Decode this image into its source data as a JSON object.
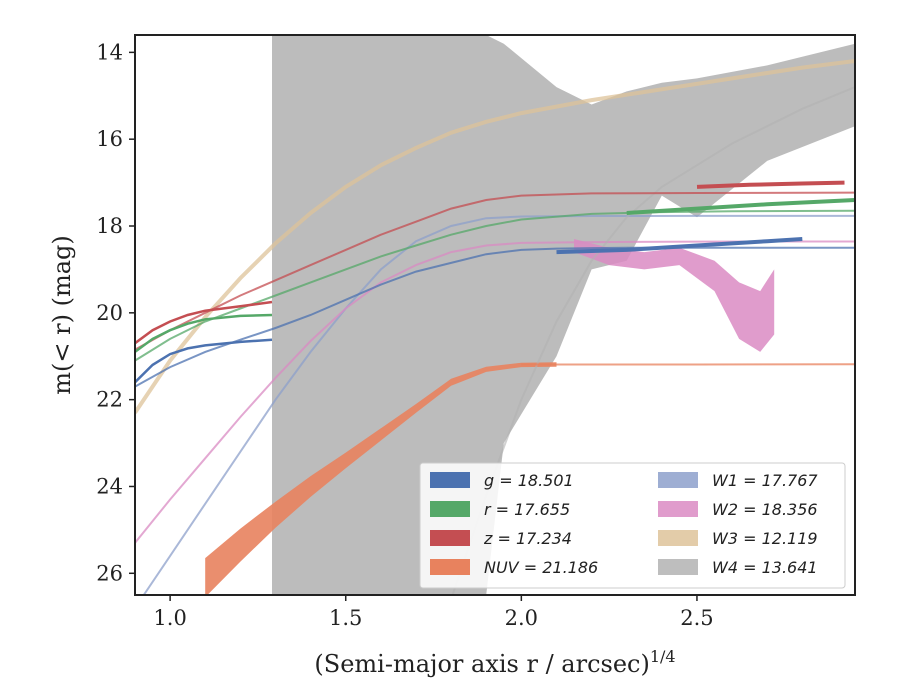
{
  "chart_data": {
    "type": "line",
    "xlabel": "(Semi-major axis r / arcsec)",
    "xlabel_sup": "1/4",
    "ylabel": "m(< r) (mag)",
    "xlim": [
      0.9,
      2.95
    ],
    "ylim": [
      26.5,
      13.6
    ],
    "y_inverted": true,
    "grid": false,
    "legend_position": "lower-right",
    "x_ticks": [
      "1.0",
      "1.5",
      "2.0",
      "2.5"
    ],
    "x_tick_values": [
      1.0,
      1.5,
      2.0,
      2.5
    ],
    "y_ticks": [
      "14",
      "16",
      "18",
      "20",
      "22",
      "24",
      "26"
    ],
    "y_tick_values": [
      14,
      16,
      18,
      20,
      22,
      24,
      26
    ],
    "series": [
      {
        "name": "g = 18.501",
        "symbol": "g",
        "mag": "18.501",
        "color": "#4c72b0",
        "x": [
          0.9,
          0.95,
          1.0,
          1.05,
          1.1,
          1.2,
          1.29
        ],
        "y": [
          21.6,
          21.2,
          20.95,
          20.82,
          20.75,
          20.67,
          20.62
        ],
        "model_x": [
          0.9,
          1.0,
          1.1,
          1.2,
          1.3,
          1.4,
          1.5,
          1.6,
          1.7,
          1.8,
          1.9,
          2.0,
          2.1,
          2.2,
          2.3,
          2.5,
          2.95
        ],
        "model_y": [
          21.7,
          21.25,
          20.9,
          20.62,
          20.35,
          20.05,
          19.7,
          19.35,
          19.05,
          18.85,
          18.65,
          18.55,
          18.52,
          18.51,
          18.5,
          18.5,
          18.5
        ],
        "outer_x": [
          2.1,
          2.3,
          2.5,
          2.7,
          2.8
        ],
        "outer_y": [
          18.6,
          18.55,
          18.45,
          18.35,
          18.3
        ]
      },
      {
        "name": "r = 17.655",
        "symbol": "r",
        "mag": "17.655",
        "color": "#55a868",
        "x": [
          0.9,
          0.95,
          1.0,
          1.05,
          1.1,
          1.2,
          1.29
        ],
        "y": [
          20.9,
          20.6,
          20.4,
          20.25,
          20.15,
          20.07,
          20.05
        ],
        "model_x": [
          0.9,
          1.0,
          1.1,
          1.2,
          1.3,
          1.4,
          1.5,
          1.6,
          1.7,
          1.8,
          1.9,
          2.0,
          2.2,
          2.4,
          2.6,
          2.95
        ],
        "model_y": [
          21.1,
          20.6,
          20.2,
          19.9,
          19.6,
          19.3,
          19.0,
          18.7,
          18.45,
          18.2,
          18.0,
          17.85,
          17.72,
          17.68,
          17.66,
          17.65
        ],
        "outer_x": [
          2.3,
          2.5,
          2.7,
          2.95
        ],
        "outer_y": [
          17.7,
          17.6,
          17.5,
          17.4
        ]
      },
      {
        "name": "z = 17.234",
        "symbol": "z",
        "mag": "17.234",
        "color": "#c44e52",
        "x": [
          0.9,
          0.95,
          1.0,
          1.05,
          1.1,
          1.2,
          1.29
        ],
        "y": [
          20.7,
          20.4,
          20.2,
          20.05,
          19.95,
          19.85,
          19.75
        ],
        "model_x": [
          0.9,
          1.0,
          1.1,
          1.2,
          1.3,
          1.4,
          1.5,
          1.6,
          1.7,
          1.8,
          1.9,
          2.0,
          2.2,
          2.5,
          2.95
        ],
        "model_y": [
          20.85,
          20.4,
          20.0,
          19.6,
          19.25,
          18.9,
          18.55,
          18.2,
          17.9,
          17.6,
          17.4,
          17.3,
          17.25,
          17.24,
          17.23
        ],
        "outer_x": [
          2.5,
          2.65,
          2.8,
          2.92
        ],
        "outer_y": [
          17.1,
          17.05,
          17.02,
          17.0
        ]
      },
      {
        "name": "NUV = 21.186",
        "symbol": "NUV",
        "mag": "21.186",
        "color": "#e8825e",
        "x": [
          1.1,
          1.2,
          1.3,
          1.4,
          1.5,
          1.6,
          1.7,
          1.8,
          1.9,
          2.0,
          2.1
        ],
        "y": [
          26.1,
          25.35,
          24.65,
          24.0,
          23.4,
          22.8,
          22.2,
          21.6,
          21.3,
          21.2,
          21.19
        ],
        "band_width_y": [
          0.45,
          0.38,
          0.3,
          0.24,
          0.18,
          0.14,
          0.1,
          0.08,
          0.06,
          0.05,
          0.05
        ],
        "model_x": [
          2.0,
          2.5,
          2.95
        ],
        "model_y": [
          21.19,
          21.19,
          21.186
        ]
      },
      {
        "name": "W1 = 17.767",
        "symbol": "W1",
        "mag": "17.767",
        "color": "#8da0cb",
        "model_x": [
          0.9,
          1.0,
          1.1,
          1.2,
          1.3,
          1.4,
          1.5,
          1.6,
          1.7,
          1.8,
          1.9,
          2.0,
          2.2,
          2.5,
          2.95
        ],
        "model_y": [
          26.8,
          25.6,
          24.4,
          23.2,
          22.0,
          20.9,
          19.9,
          19.0,
          18.35,
          18.0,
          17.82,
          17.78,
          17.77,
          17.767,
          17.767
        ]
      },
      {
        "name": "W2 = 18.356",
        "symbol": "W2",
        "mag": "18.356",
        "color": "#da8bc3",
        "model_x": [
          0.9,
          1.0,
          1.1,
          1.2,
          1.3,
          1.4,
          1.5,
          1.6,
          1.7,
          1.8,
          1.9,
          2.0,
          2.2,
          2.5,
          2.95
        ],
        "model_y": [
          25.3,
          24.3,
          23.35,
          22.4,
          21.5,
          20.65,
          19.9,
          19.3,
          18.9,
          18.6,
          18.45,
          18.39,
          18.37,
          18.36,
          18.356
        ],
        "band_x": [
          2.15,
          2.25,
          2.35,
          2.45,
          2.55,
          2.62,
          2.68,
          2.72
        ],
        "band_upper": [
          18.3,
          18.5,
          18.6,
          18.5,
          18.8,
          19.3,
          19.5,
          19.0
        ],
        "band_lower": [
          18.6,
          18.9,
          19.0,
          18.9,
          19.5,
          20.6,
          20.9,
          20.5
        ]
      },
      {
        "name": "W3 = 12.119",
        "symbol": "W3",
        "mag": "12.119",
        "color": "#dec39a",
        "model_x": [
          0.9,
          1.0,
          1.1,
          1.2,
          1.3,
          1.4,
          1.5,
          1.6,
          1.7,
          1.8,
          1.9,
          2.0,
          2.2,
          2.4,
          2.6,
          2.8,
          2.95
        ],
        "model_y": [
          22.3,
          21.1,
          20.1,
          19.2,
          18.4,
          17.7,
          17.1,
          16.6,
          16.2,
          15.85,
          15.6,
          15.4,
          15.1,
          14.85,
          14.6,
          14.35,
          14.2
        ]
      },
      {
        "name": "W4 = 13.641",
        "symbol": "W4",
        "mag": "13.641",
        "color": "#b3b3b3",
        "model_x": [
          1.8,
          1.9,
          2.0,
          2.1,
          2.2,
          2.3,
          2.4,
          2.5,
          2.6,
          2.7,
          2.8,
          2.95
        ],
        "model_y": [
          26.6,
          24.2,
          22.0,
          20.2,
          18.8,
          17.8,
          17.1,
          16.6,
          16.1,
          15.7,
          15.3,
          14.8
        ],
        "band_x": [
          1.29,
          1.9,
          1.95,
          2.1,
          2.2,
          2.3,
          2.4,
          2.5,
          2.7,
          2.95
        ],
        "band_upper": [
          13.6,
          13.6,
          13.8,
          14.8,
          15.2,
          14.9,
          14.7,
          14.6,
          14.3,
          13.8
        ],
        "band_lower": [
          26.5,
          26.5,
          23.0,
          21.0,
          19.0,
          18.8,
          17.3,
          17.8,
          16.5,
          15.7
        ]
      }
    ],
    "legend": {
      "col1": [
        "g = 18.501",
        "r = 17.655",
        "z = 17.234",
        "NUV = 21.186"
      ],
      "col2": [
        "W1 = 17.767",
        "W2 = 18.356",
        "W3 = 12.119",
        "W4 = 13.641"
      ]
    }
  }
}
